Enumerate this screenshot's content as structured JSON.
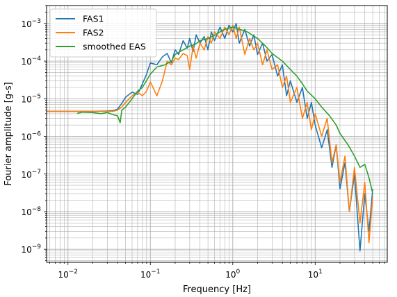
{
  "chart_data": {
    "type": "line",
    "title": "",
    "xlabel": "Frequency [Hz]",
    "ylabel": "Fourier amplitude [g-s]",
    "xscale": "log",
    "yscale": "log",
    "xlim": [
      0.0055,
      75
    ],
    "ylim": [
      4.5e-10,
      0.003
    ],
    "grid": "major and minor",
    "legend_position": "top-left",
    "x_tick_labels": [
      {
        "value": 0.01,
        "base": "10",
        "exp": "−2"
      },
      {
        "value": 0.1,
        "base": "10",
        "exp": "−1"
      },
      {
        "value": 1,
        "base": "10",
        "exp": "0"
      },
      {
        "value": 10,
        "base": "10",
        "exp": "1"
      }
    ],
    "y_tick_labels": [
      {
        "value": 1e-09,
        "base": "10",
        "exp": "−9"
      },
      {
        "value": 1e-08,
        "base": "10",
        "exp": "−8"
      },
      {
        "value": 1e-07,
        "base": "10",
        "exp": "−7"
      },
      {
        "value": 1e-06,
        "base": "10",
        "exp": "−6"
      },
      {
        "value": 1e-05,
        "base": "10",
        "exp": "−5"
      },
      {
        "value": 0.0001,
        "base": "10",
        "exp": "−4"
      },
      {
        "value": 0.001,
        "base": "10",
        "exp": "−3"
      }
    ],
    "series": [
      {
        "name": "FAS1",
        "color": "#1f77b4",
        "x": [
          0.0055,
          0.01,
          0.02,
          0.03,
          0.035,
          0.04,
          0.045,
          0.05,
          0.06,
          0.07,
          0.08,
          0.09,
          0.1,
          0.12,
          0.14,
          0.16,
          0.18,
          0.2,
          0.22,
          0.25,
          0.28,
          0.3,
          0.33,
          0.36,
          0.4,
          0.45,
          0.5,
          0.55,
          0.6,
          0.7,
          0.8,
          0.9,
          1.0,
          1.1,
          1.2,
          1.4,
          1.6,
          1.8,
          2.0,
          2.3,
          2.6,
          3.0,
          3.5,
          4.0,
          4.5,
          5.0,
          6.0,
          7.0,
          8.0,
          9.0,
          10,
          12,
          14,
          16,
          18,
          20,
          23,
          26,
          30,
          35,
          40,
          45,
          50
        ],
        "y": [
          4.6e-06,
          4.6e-06,
          4.6e-06,
          4.7e-06,
          4.8e-06,
          5.3e-06,
          7.5e-06,
          1.1e-05,
          1.5e-05,
          1.3e-05,
          2.5e-05,
          4.5e-05,
          9e-05,
          8e-05,
          0.00013,
          0.00016,
          9e-05,
          0.0002,
          0.00015,
          0.00035,
          0.00022,
          0.0004,
          0.00018,
          0.0005,
          0.0003,
          0.00045,
          0.0002,
          0.0006,
          0.00035,
          0.0008,
          0.0004,
          0.0009,
          0.0006,
          0.001,
          0.0003,
          0.0007,
          0.00025,
          0.0005,
          0.00015,
          0.0003,
          0.0001,
          0.00015,
          4e-05,
          8e-05,
          1.2e-05,
          3e-05,
          8e-06,
          2e-05,
          3e-06,
          8e-06,
          2e-06,
          5e-07,
          1.5e-06,
          1.5e-07,
          6e-07,
          4e-08,
          2e-07,
          1e-08,
          1e-07,
          9e-10,
          3e-08,
          3e-09,
          4e-08
        ]
      },
      {
        "name": "FAS2",
        "color": "#ff7f0e",
        "x": [
          0.0055,
          0.01,
          0.02,
          0.03,
          0.035,
          0.04,
          0.045,
          0.05,
          0.06,
          0.07,
          0.08,
          0.09,
          0.1,
          0.12,
          0.14,
          0.16,
          0.18,
          0.2,
          0.22,
          0.25,
          0.28,
          0.3,
          0.33,
          0.36,
          0.4,
          0.45,
          0.5,
          0.55,
          0.6,
          0.7,
          0.8,
          0.9,
          1.0,
          1.1,
          1.2,
          1.4,
          1.6,
          1.8,
          2.0,
          2.3,
          2.6,
          3.0,
          3.5,
          4.0,
          4.5,
          5.0,
          6.0,
          7.0,
          8.0,
          9.0,
          10,
          12,
          14,
          16,
          18,
          20,
          23,
          26,
          30,
          35,
          40,
          45,
          50
        ],
        "y": [
          4.6e-06,
          4.6e-06,
          4.6e-06,
          4.6e-06,
          4.6e-06,
          5e-06,
          6e-06,
          8e-06,
          1.2e-05,
          1.5e-05,
          1.2e-05,
          1.6e-05,
          2.8e-05,
          1.2e-05,
          3e-05,
          0.0001,
          8e-05,
          0.00012,
          0.00011,
          0.00016,
          0.00014,
          6e-05,
          0.00025,
          0.00012,
          0.0003,
          0.0002,
          0.00045,
          0.0003,
          0.0006,
          0.0004,
          0.0008,
          0.0005,
          0.0009,
          0.0004,
          0.0008,
          0.00015,
          0.0004,
          0.0002,
          0.0003,
          8e-05,
          0.0002,
          6e-05,
          8e-05,
          2e-05,
          4e-05,
          8e-06,
          2e-05,
          3e-06,
          8e-06,
          1.5e-06,
          4e-06,
          1e-06,
          3e-06,
          2e-07,
          6e-07,
          6e-08,
          3e-07,
          1e-08,
          1.5e-07,
          5e-09,
          6e-08,
          1.5e-09,
          2.5e-08
        ]
      },
      {
        "name": "smoothed EAS",
        "color": "#2ca02c",
        "x": [
          0.013,
          0.015,
          0.02,
          0.025,
          0.03,
          0.035,
          0.04,
          0.043,
          0.045,
          0.05,
          0.06,
          0.07,
          0.08,
          0.1,
          0.12,
          0.15,
          0.18,
          0.2,
          0.25,
          0.3,
          0.35,
          0.4,
          0.5,
          0.6,
          0.7,
          0.8,
          1.0,
          1.2,
          1.5,
          2.0,
          2.5,
          3.0,
          4.0,
          5.0,
          6.0,
          7.0,
          8.0,
          10,
          12,
          15,
          18,
          20,
          25,
          30,
          35,
          40,
          45,
          50
        ],
        "y": [
          4.1e-06,
          4.4e-06,
          4.3e-06,
          4e-06,
          4.3e-06,
          3.8e-06,
          3.5e-06,
          2.3e-06,
          5e-06,
          6e-06,
          1e-05,
          1.6e-05,
          2e-05,
          4.5e-05,
          7e-05,
          8e-05,
          0.0001,
          0.00015,
          0.0002,
          0.00025,
          0.00028,
          0.00035,
          0.0004,
          0.00048,
          0.0006,
          0.0007,
          0.0008,
          0.0007,
          0.0006,
          0.0004,
          0.00025,
          0.00016,
          0.0001,
          6e-05,
          4e-05,
          2.5e-05,
          1.6e-05,
          1e-05,
          6e-06,
          3.5e-06,
          2e-06,
          1.2e-06,
          6e-07,
          3e-07,
          1.5e-07,
          1.8e-07,
          8e-08,
          3e-08
        ]
      }
    ]
  }
}
